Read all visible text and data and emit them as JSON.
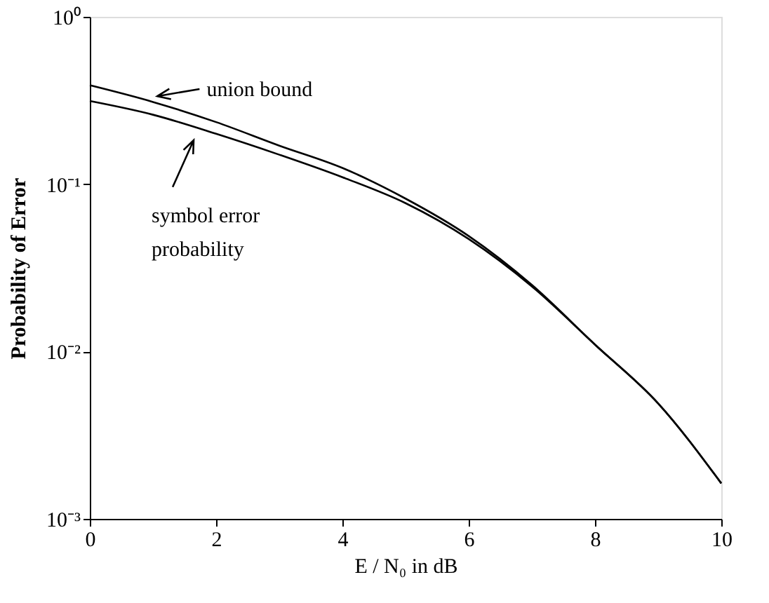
{
  "chart_data": {
    "type": "line",
    "xlabel": "E / N₀  in dB",
    "ylabel": "Probability of Error",
    "x": [
      0,
      1,
      2,
      3,
      4,
      5,
      6,
      7,
      8,
      9,
      10
    ],
    "series": [
      {
        "color": "#000000",
        "values": [
          0.39,
          0.31,
          0.235,
          0.17,
          0.125,
          0.082,
          0.049,
          0.025,
          0.011,
          0.0049,
          0.00163
        ]
      },
      {
        "color": "#000000",
        "values": [
          0.314,
          0.26,
          0.2,
          0.15,
          0.11,
          0.077,
          0.047,
          0.0245,
          0.011,
          0.0049,
          0.00163
        ]
      }
    ],
    "annotations": [
      {
        "text": "union bound",
        "x": 0.96,
        "y": 0.33
      },
      {
        "text": "symbol error probability",
        "x": 1.69,
        "y": 0.2
      }
    ],
    "xlim": [
      0,
      10
    ],
    "xticks": [
      0,
      2,
      4,
      6,
      8,
      10
    ],
    "ylim": [
      0.001,
      1
    ],
    "yticks": [
      {
        "value": 1,
        "label": "10⁰"
      },
      {
        "value": 0.1,
        "label": "10⁻¹"
      },
      {
        "value": 0.01,
        "label": "10⁻²"
      },
      {
        "value": 0.001,
        "label": "10⁻³"
      }
    ],
    "log": "y",
    "grid": false,
    "marker": "none",
    "line_style": "solid"
  }
}
